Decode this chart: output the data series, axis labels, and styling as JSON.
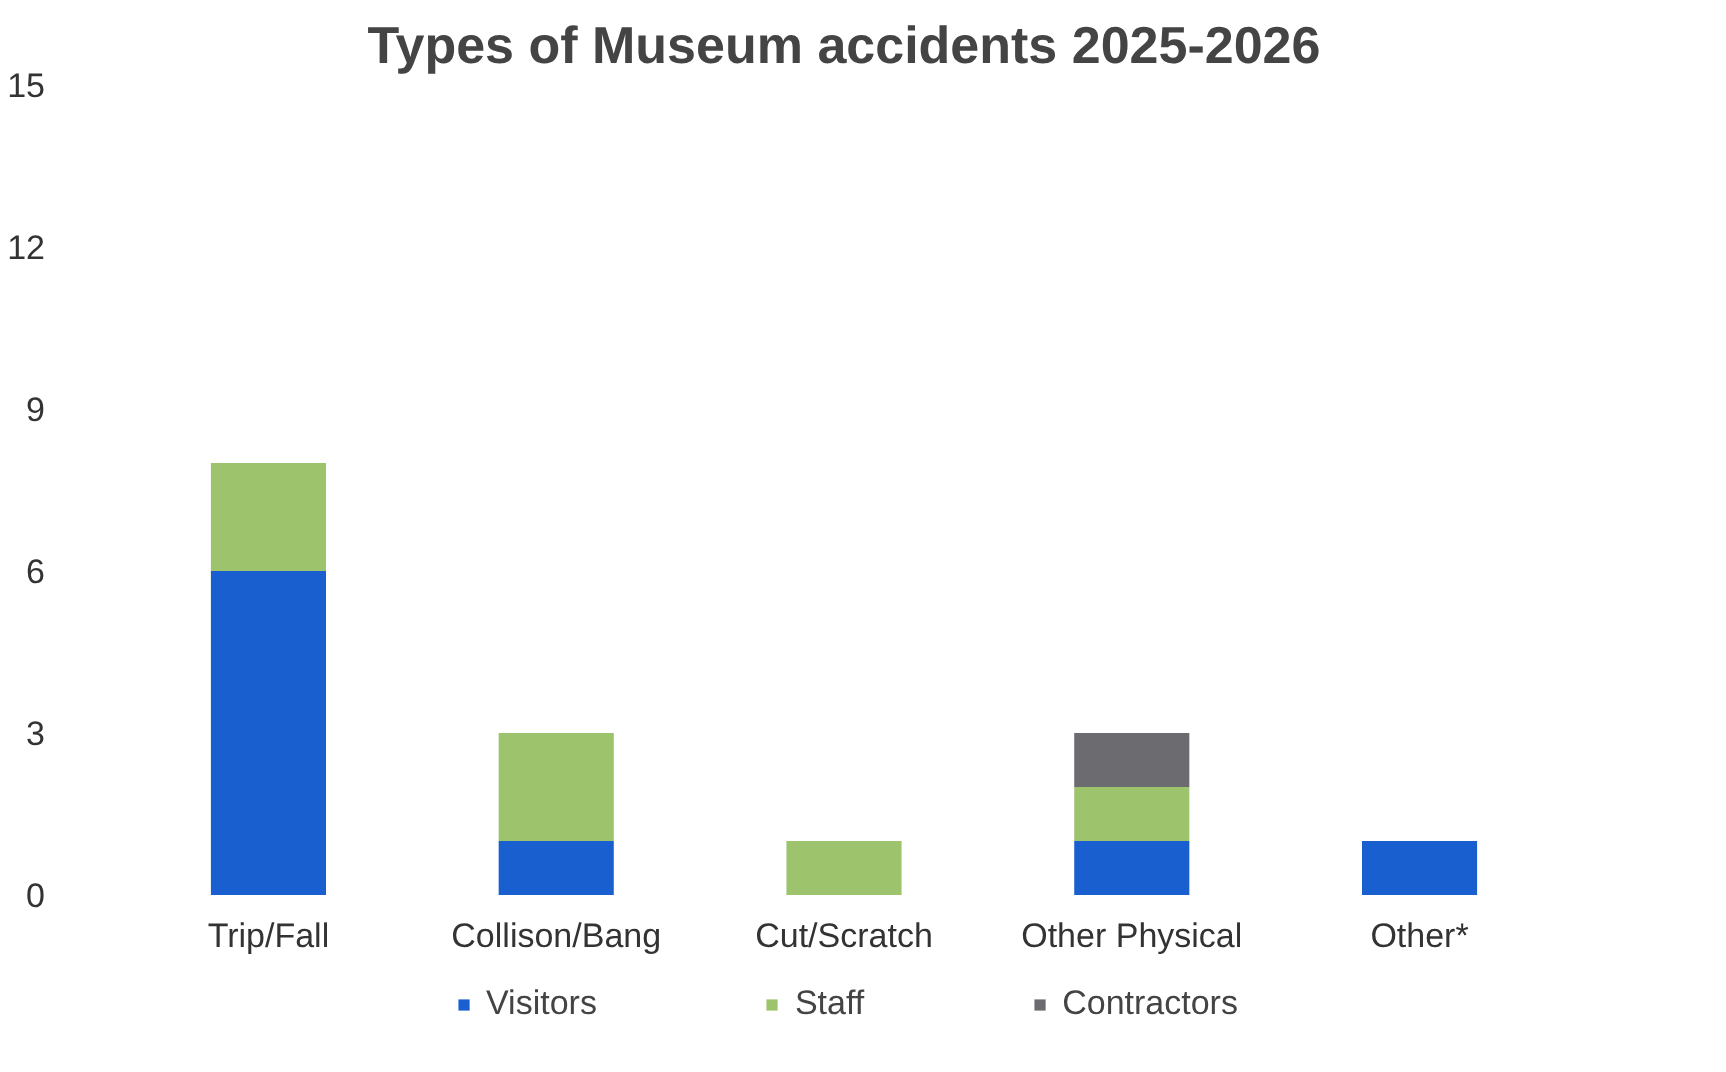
{
  "chart_data": {
    "type": "bar",
    "title": "Types of Museum accidents 2025-2026",
    "categories": [
      "Trip/Fall",
      "Collison/Bang",
      "Cut/Scratch",
      "Other Physical",
      "Other*"
    ],
    "stacked": true,
    "series": [
      {
        "name": "Visitors",
        "color": "#1a5fd0",
        "values": [
          6,
          1,
          0,
          1,
          1
        ]
      },
      {
        "name": "Staff",
        "color": "#9dc36c",
        "values": [
          2,
          2,
          1,
          1,
          0
        ]
      },
      {
        "name": "Contractors",
        "color": "#6b6b70",
        "values": [
          0,
          0,
          0,
          1,
          0
        ]
      }
    ],
    "ylim": [
      0,
      15
    ],
    "yticks": [
      0,
      3,
      6,
      9,
      12,
      15
    ],
    "grid": false,
    "legend": "bottom"
  }
}
